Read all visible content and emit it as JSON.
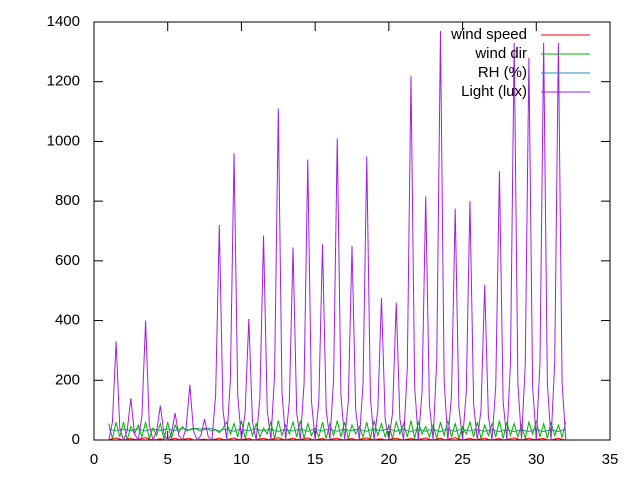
{
  "chart_data": {
    "type": "line",
    "x": [
      1,
      1.25,
      1.5,
      1.75,
      2,
      2.25,
      2.5,
      2.75,
      3,
      3.25,
      3.5,
      3.75,
      4,
      4.25,
      4.5,
      4.75,
      5,
      5.25,
      5.5,
      5.75,
      6,
      6.25,
      6.5,
      6.75,
      7,
      7.25,
      7.5,
      7.75,
      8,
      8.25,
      8.5,
      8.75,
      9,
      9.25,
      9.5,
      9.75,
      10,
      10.25,
      10.5,
      10.75,
      11,
      11.25,
      11.5,
      11.75,
      12,
      12.25,
      12.5,
      12.75,
      13,
      13.25,
      13.5,
      13.75,
      14,
      14.25,
      14.5,
      14.75,
      15,
      15.25,
      15.5,
      15.75,
      16,
      16.25,
      16.5,
      16.75,
      17,
      17.25,
      17.5,
      17.75,
      18,
      18.25,
      18.5,
      18.75,
      19,
      19.25,
      19.5,
      19.75,
      20,
      20.25,
      20.5,
      20.75,
      21,
      21.25,
      21.5,
      21.75,
      22,
      22.25,
      22.5,
      22.75,
      23,
      23.25,
      23.5,
      23.75,
      24,
      24.25,
      24.5,
      24.75,
      25,
      25.25,
      25.5,
      25.75,
      26,
      26.25,
      26.5,
      26.75,
      27,
      27.25,
      27.5,
      27.75,
      28,
      28.25,
      28.5,
      28.75,
      29,
      29.25,
      29.5,
      29.75,
      30,
      30.25,
      30.5,
      30.75,
      31,
      31.25,
      31.5,
      31.75,
      32
    ],
    "series": [
      {
        "name": "wind speed",
        "color": "#ff0000",
        "values": [
          2,
          4,
          7,
          3,
          1,
          3,
          5,
          2,
          2,
          5,
          8,
          3,
          1,
          2,
          4,
          1,
          1,
          3,
          6,
          2,
          2,
          4,
          5,
          1,
          1,
          2,
          3,
          1,
          2,
          3,
          6,
          2,
          1,
          4,
          7,
          2,
          2,
          3,
          5,
          1,
          1,
          4,
          6,
          2,
          2,
          5,
          8,
          3,
          1,
          3,
          6,
          2,
          2,
          4,
          7,
          2,
          1,
          3,
          5,
          1,
          2,
          4,
          6,
          2,
          1,
          3,
          5,
          1,
          2,
          5,
          7,
          3,
          1,
          3,
          4,
          1,
          2,
          4,
          6,
          2,
          1,
          3,
          5,
          2,
          2,
          4,
          7,
          2,
          1,
          3,
          6,
          1,
          2,
          5,
          8,
          3,
          1,
          3,
          5,
          2,
          2,
          4,
          6,
          2,
          1,
          3,
          5,
          1,
          2,
          4,
          7,
          3,
          1,
          3,
          6,
          2,
          2,
          4,
          5,
          1,
          1,
          3,
          6,
          2,
          1
        ]
      },
      {
        "name": "wind dir",
        "color": "#00b000",
        "values": [
          55,
          5,
          60,
          10,
          60,
          0,
          45,
          20,
          50,
          10,
          60,
          5,
          40,
          15,
          55,
          0,
          60,
          5,
          50,
          25,
          45,
          30,
          35,
          40,
          35,
          30,
          40,
          35,
          30,
          35,
          25,
          40,
          60,
          20,
          55,
          10,
          65,
          5,
          60,
          15,
          55,
          10,
          40,
          20,
          60,
          5,
          65,
          15,
          50,
          20,
          60,
          10,
          65,
          5,
          55,
          15,
          40,
          10,
          60,
          5,
          55,
          15,
          65,
          10,
          60,
          5,
          50,
          20,
          45,
          10,
          60,
          5,
          65,
          15,
          55,
          10,
          50,
          5,
          60,
          20,
          55,
          10,
          65,
          5,
          60,
          20,
          45,
          10,
          50,
          5,
          60,
          15,
          65,
          10,
          55,
          5,
          45,
          20,
          60,
          10,
          60,
          5,
          50,
          15,
          55,
          10,
          65,
          5,
          60,
          15,
          55,
          10,
          50,
          5,
          60,
          20,
          65,
          10,
          55,
          5,
          60,
          15,
          50,
          10,
          60
        ]
      },
      {
        "name": "RH (%)",
        "color": "#2a8fb0",
        "values": [
          35,
          33,
          30,
          34,
          36,
          34,
          31,
          35,
          37,
          33,
          30,
          34,
          36,
          35,
          32,
          35,
          37,
          34,
          31,
          36,
          38,
          36,
          33,
          37,
          39,
          37,
          35,
          38,
          38,
          34,
          30,
          35,
          36,
          32,
          29,
          34,
          36,
          33,
          31,
          35,
          37,
          33,
          30,
          34,
          36,
          32,
          28,
          33,
          35,
          32,
          30,
          34,
          36,
          33,
          29,
          34,
          35,
          33,
          30,
          35,
          36,
          32,
          29,
          34,
          35,
          33,
          31,
          35,
          36,
          32,
          29,
          34,
          36,
          34,
          31,
          35,
          37,
          33,
          29,
          34,
          36,
          32,
          28,
          33,
          35,
          32,
          29,
          34,
          36,
          31,
          28,
          33,
          35,
          32,
          29,
          34,
          36,
          33,
          30,
          34,
          35,
          32,
          29,
          33,
          35,
          31,
          28,
          33,
          34,
          31,
          28,
          32,
          34,
          31,
          28,
          33,
          35,
          31,
          28,
          32,
          34,
          31,
          28,
          33,
          35
        ]
      },
      {
        "name": "Light (lux)",
        "color": "#a020e0",
        "values": [
          0,
          60,
          330,
          40,
          0,
          30,
          140,
          20,
          0,
          80,
          400,
          50,
          0,
          30,
          115,
          20,
          0,
          20,
          90,
          15,
          0,
          40,
          185,
          30,
          0,
          15,
          70,
          10,
          0,
          150,
          720,
          100,
          0,
          200,
          960,
          150,
          0,
          90,
          405,
          60,
          0,
          140,
          685,
          100,
          0,
          220,
          1110,
          160,
          0,
          130,
          645,
          90,
          0,
          190,
          940,
          130,
          0,
          130,
          655,
          100,
          0,
          200,
          1010,
          150,
          0,
          130,
          650,
          100,
          0,
          190,
          950,
          140,
          0,
          100,
          475,
          70,
          0,
          90,
          460,
          70,
          0,
          240,
          1220,
          180,
          0,
          160,
          815,
          120,
          0,
          270,
          1370,
          200,
          0,
          150,
          775,
          110,
          0,
          160,
          800,
          120,
          0,
          100,
          520,
          80,
          0,
          180,
          900,
          130,
          0,
          260,
          1330,
          190,
          0,
          250,
          1280,
          180,
          0,
          260,
          1330,
          190,
          0,
          260,
          1330,
          190,
          0
        ]
      }
    ],
    "xlim": [
      0,
      35
    ],
    "xticks": [
      0,
      5,
      10,
      15,
      20,
      25,
      30,
      35
    ],
    "ylim": [
      0,
      1400
    ],
    "yticks": [
      0,
      200,
      400,
      600,
      800,
      1000,
      1200,
      1400
    ]
  }
}
